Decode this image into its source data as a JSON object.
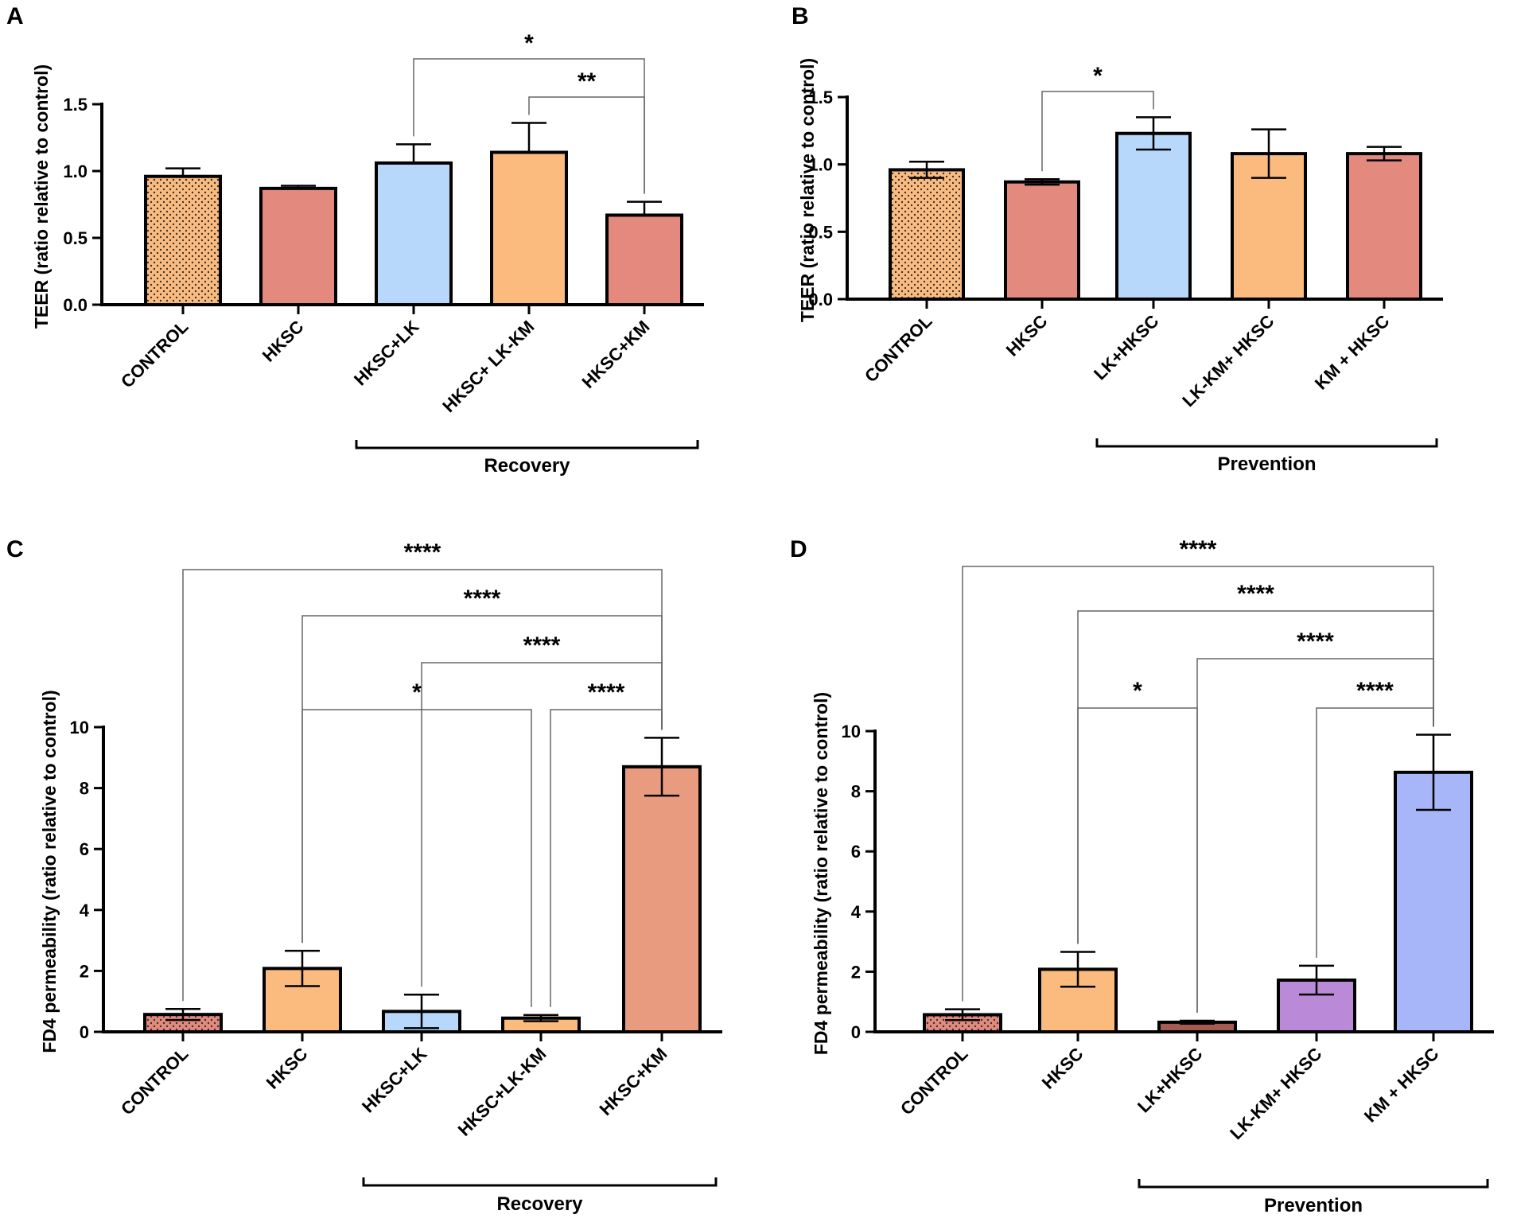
{
  "colors": {
    "orange": "#FBBB7E",
    "salmon": "#E3897D",
    "light_blue": "#B8D8FB",
    "peach": "#E99B80",
    "dark_salmon": "#A65B52",
    "purple": "#BA8AD9",
    "periwinkle": "#A7B6F9",
    "axis": "#000000",
    "bracket": "#666666"
  },
  "chart_data": [
    {
      "panel": "A",
      "type": "bar",
      "ylabel": "TEER (ratio relative to control)",
      "ylim": [
        0,
        1.5
      ],
      "yticks": [
        "0.0",
        "0.5",
        "1.0",
        "1.5"
      ],
      "categories": [
        "CONTROL",
        "HKSC",
        "HKSC+LK",
        "HKSC+ LK-KM",
        "HKSC+KM"
      ],
      "values": [
        0.96,
        0.87,
        1.06,
        1.14,
        0.67
      ],
      "errors": [
        0.06,
        0.02,
        0.14,
        0.22,
        0.1
      ],
      "error_style": "up",
      "fills": [
        "orange",
        "salmon",
        "light_blue",
        "orange",
        "salmon"
      ],
      "patterns": [
        "dots",
        "none",
        "none",
        "none",
        "none"
      ],
      "group": {
        "label": "Recovery",
        "from": 2,
        "to": 4
      },
      "significance": [
        {
          "from": 2,
          "to": 4,
          "label": "*"
        },
        {
          "from": 3,
          "to": 4,
          "label": "**"
        }
      ]
    },
    {
      "panel": "B",
      "type": "bar",
      "ylabel": "TEER (ratio relative to control)",
      "ylim": [
        0,
        1.5
      ],
      "yticks": [
        "0.0",
        "0.5",
        "1.0",
        "1.5"
      ],
      "categories": [
        "CONTROL",
        "HKSC",
        "LK+HKSC",
        "LK-KM+ HKSC",
        "KM + HKSC"
      ],
      "values": [
        0.96,
        0.87,
        1.23,
        1.08,
        1.08
      ],
      "errors": [
        0.06,
        0.02,
        0.12,
        0.18,
        0.05
      ],
      "error_style": "both",
      "fills": [
        "orange",
        "salmon",
        "light_blue",
        "orange",
        "salmon"
      ],
      "patterns": [
        "dots",
        "none",
        "none",
        "none",
        "none"
      ],
      "group": {
        "label": "Prevention",
        "from": 2,
        "to": 4
      },
      "significance": [
        {
          "from": 1,
          "to": 2,
          "label": "*"
        }
      ]
    },
    {
      "panel": "C",
      "type": "bar",
      "ylabel": "FD4 permeability  (ratio relative to control)",
      "ylim": [
        0,
        10
      ],
      "yticks": [
        "0",
        "2",
        "4",
        "6",
        "8",
        "10"
      ],
      "categories": [
        "CONTROL",
        "HKSC",
        "HKSC+LK",
        "HKSC+LK-KM",
        "HKSC+KM"
      ],
      "values": [
        0.57,
        2.08,
        0.67,
        0.45,
        8.7
      ],
      "errors": [
        0.18,
        0.58,
        0.55,
        0.1,
        0.95
      ],
      "error_style": "both",
      "fills": [
        "salmon",
        "orange",
        "light_blue",
        "orange",
        "peach"
      ],
      "patterns": [
        "dots",
        "none",
        "none",
        "none",
        "none"
      ],
      "group": {
        "label": "Recovery",
        "from": 2,
        "to": 4
      },
      "significance": [
        {
          "from": 0,
          "to": 4,
          "label": "****"
        },
        {
          "from": 1,
          "to": 4,
          "label": "****"
        },
        {
          "from": 2,
          "to": 4,
          "label": "****"
        },
        {
          "from": 1,
          "to": 3,
          "label": "*"
        },
        {
          "from": 3,
          "to": 4,
          "label": "****"
        }
      ]
    },
    {
      "panel": "D",
      "type": "bar",
      "ylabel": "FD4 permeability  (ratio relative to control)",
      "ylim": [
        0,
        10
      ],
      "yticks": [
        "0",
        "2",
        "4",
        "6",
        "8",
        "10"
      ],
      "categories": [
        "CONTROL",
        "HKSC",
        "LK+HKSC",
        "LK-KM+ HKSC",
        "KM + HKSC"
      ],
      "values": [
        0.57,
        2.08,
        0.32,
        1.72,
        8.63
      ],
      "errors": [
        0.18,
        0.58,
        0.05,
        0.48,
        1.25
      ],
      "error_style": "both",
      "fills": [
        "salmon",
        "orange",
        "dark_salmon",
        "purple",
        "periwinkle"
      ],
      "patterns": [
        "dots",
        "none",
        "none",
        "none",
        "none"
      ],
      "group": {
        "label": "Prevention",
        "from": 2,
        "to": 4
      },
      "significance": [
        {
          "from": 0,
          "to": 4,
          "label": "****"
        },
        {
          "from": 1,
          "to": 4,
          "label": "****"
        },
        {
          "from": 2,
          "to": 4,
          "label": "****"
        },
        {
          "from": 1,
          "to": 2,
          "label": "*"
        },
        {
          "from": 3,
          "to": 4,
          "label": "****"
        }
      ]
    }
  ]
}
